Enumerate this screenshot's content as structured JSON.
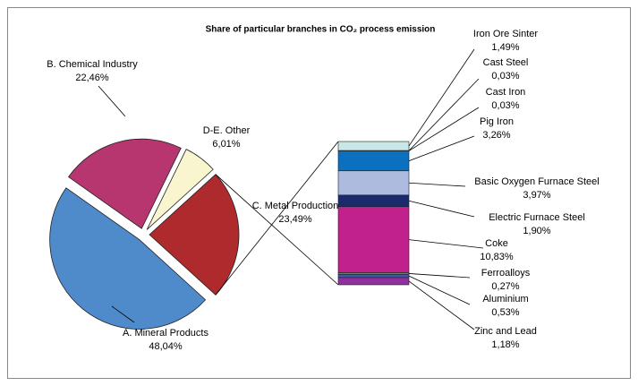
{
  "chart_data": {
    "type": "bar_of_pie",
    "title": "Share of particular branches in CO₂ process emission",
    "categories": [
      "A. Mineral Products",
      "B. Chemical Industry",
      "D-E. Other",
      "C. Metal Production"
    ],
    "values": [
      48.04,
      22.46,
      6.01,
      23.49
    ],
    "value_labels": [
      "48,04%",
      "22,46%",
      "6,01%",
      "23,49%"
    ],
    "colors": [
      "#4f8bcb",
      "#b8366f",
      "#f9f5cf",
      "#ae2a2d"
    ],
    "breakdown": {
      "categories": [
        "Iron Ore Sinter",
        "Cast Steel",
        "Cast Iron",
        "Pig Iron",
        "Basic Oxygen Furnace Steel",
        "Electric Furnace Steel",
        "Coke",
        "Ferroalloys",
        "Aluminium",
        "Zinc and Lead"
      ],
      "values": [
        1.49,
        0.03,
        0.03,
        3.26,
        3.97,
        1.9,
        10.83,
        0.27,
        0.53,
        1.18
      ],
      "value_labels": [
        "1,49%",
        "0,03%",
        "0,03%",
        "3,26%",
        "3,97%",
        "1,90%",
        "10,83%",
        "0,27%",
        "0,53%",
        "1,18%"
      ],
      "colors": [
        "#c8e7e6",
        "#3a6fb0",
        "#2a4f90",
        "#0b70c0",
        "#adbbde",
        "#1b2a6b",
        "#c0218d",
        "#6b8b3a",
        "#3a5aa3",
        "#8f2fa0"
      ]
    }
  }
}
